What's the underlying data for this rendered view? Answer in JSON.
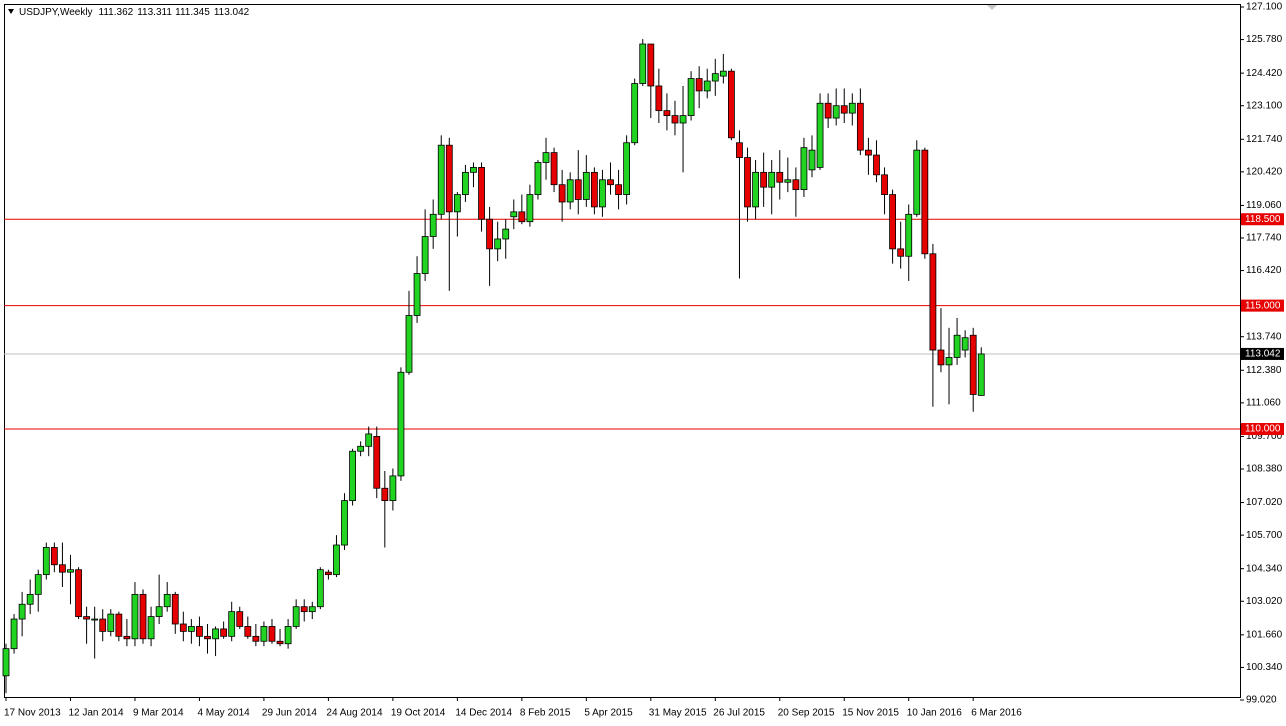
{
  "chart_data": {
    "type": "candlestick",
    "title": "USDJPY,Weekly",
    "up_color": "#22d422",
    "down_color": "#e60000",
    "categories": [
      "17 Nov 2013",
      null,
      null,
      null,
      null,
      null,
      null,
      null,
      "12 Jan 2014",
      null,
      null,
      null,
      null,
      null,
      null,
      null,
      "9 Mar 2014",
      null,
      null,
      null,
      null,
      null,
      null,
      null,
      "4 May 2014",
      null,
      null,
      null,
      null,
      null,
      null,
      null,
      "29 Jun 2014",
      null,
      null,
      null,
      null,
      null,
      null,
      null,
      "24 Aug 2014",
      null,
      null,
      null,
      null,
      null,
      null,
      null,
      "19 Oct 2014",
      null,
      null,
      null,
      null,
      null,
      null,
      null,
      "14 Dec 2014",
      null,
      null,
      null,
      null,
      null,
      null,
      null,
      "8 Feb 2015",
      null,
      null,
      null,
      null,
      null,
      null,
      null,
      "5 Apr 2015",
      null,
      null,
      null,
      null,
      null,
      null,
      null,
      "31 May 2015",
      null,
      null,
      null,
      null,
      null,
      null,
      null,
      "26 Jul 2015",
      null,
      null,
      null,
      null,
      null,
      null,
      null,
      "20 Sep 2015",
      null,
      null,
      null,
      null,
      null,
      null,
      null,
      "15 Nov 2015",
      null,
      null,
      null,
      null,
      null,
      null,
      null,
      "10 Jan 2016",
      null,
      null,
      null,
      null,
      null,
      null,
      null,
      "6 Mar 2016",
      null
    ],
    "open": [
      100.0,
      101.1,
      102.3,
      102.9,
      103.3,
      104.1,
      105.2,
      104.5,
      104.2,
      104.3,
      102.4,
      102.3,
      102.3,
      101.8,
      102.5,
      101.6,
      101.5,
      103.3,
      101.5,
      102.4,
      102.8,
      103.3,
      102.1,
      101.8,
      102.0,
      101.6,
      101.5,
      101.9,
      101.6,
      102.6,
      102.0,
      101.6,
      101.4,
      102.0,
      101.4,
      101.3,
      102.0,
      102.8,
      102.6,
      102.8,
      104.2,
      104.1,
      105.3,
      107.1,
      109.1,
      109.3,
      109.7,
      107.6,
      107.1,
      108.1,
      112.3,
      114.6,
      116.3,
      117.8,
      118.7,
      121.5,
      118.8,
      119.5,
      120.4,
      120.6,
      118.5,
      117.3,
      117.7,
      118.6,
      118.8,
      118.4,
      119.5,
      120.8,
      121.2,
      119.9,
      119.2,
      120.1,
      119.3,
      120.4,
      119.0,
      120.1,
      119.9,
      119.5,
      121.6,
      124.0,
      125.6,
      123.9,
      122.9,
      122.7,
      122.4,
      122.7,
      124.2,
      123.7,
      124.1,
      124.3,
      124.5,
      121.6,
      121.0,
      119.0,
      120.4,
      119.8,
      120.4,
      120.0,
      120.1,
      119.7,
      120.5,
      120.6,
      123.2,
      122.6,
      123.1,
      122.8,
      123.2,
      121.3,
      121.1,
      120.3,
      119.5,
      117.3,
      117.0,
      118.7,
      121.3,
      117.1,
      113.2,
      112.6,
      112.9,
      113.2,
      113.8,
      111.362
    ],
    "high": [
      101.3,
      102.5,
      103.4,
      103.9,
      104.3,
      105.4,
      105.4,
      105.4,
      104.9,
      104.4,
      102.8,
      102.8,
      102.7,
      102.7,
      102.6,
      102.3,
      103.8,
      103.5,
      102.8,
      104.1,
      103.8,
      103.4,
      102.6,
      102.3,
      102.4,
      102.1,
      102.0,
      102.2,
      103.0,
      102.8,
      102.4,
      102.1,
      102.2,
      102.3,
      101.9,
      102.3,
      103.1,
      103.1,
      103.0,
      104.4,
      104.3,
      105.7,
      107.4,
      109.2,
      109.5,
      110.1,
      110.1,
      108.3,
      108.4,
      112.5,
      115.6,
      117.0,
      118.9,
      119.3,
      121.9,
      121.8,
      119.6,
      120.7,
      120.8,
      120.8,
      119.0,
      118.4,
      118.5,
      119.3,
      119.5,
      119.9,
      120.9,
      121.8,
      121.4,
      120.5,
      120.4,
      121.3,
      121.1,
      120.6,
      120.5,
      120.8,
      120.5,
      121.9,
      124.2,
      125.8,
      125.6,
      124.6,
      123.6,
      123.3,
      123.9,
      124.5,
      124.7,
      124.6,
      125.0,
      125.2,
      124.6,
      122.1,
      121.4,
      120.9,
      121.2,
      120.9,
      121.3,
      121.0,
      120.6,
      121.8,
      121.9,
      123.6,
      123.6,
      123.8,
      123.8,
      123.6,
      123.8,
      121.8,
      121.7,
      120.6,
      119.7,
      118.4,
      119.1,
      121.7,
      121.4,
      117.5,
      114.9,
      114.1,
      114.5,
      114.0,
      114.1,
      113.311
    ],
    "low": [
      99.3,
      100.9,
      101.6,
      102.5,
      102.6,
      103.9,
      104.2,
      103.6,
      102.9,
      102.3,
      101.3,
      100.7,
      101.4,
      101.6,
      101.4,
      101.2,
      101.2,
      101.3,
      101.2,
      102.1,
      102.6,
      101.7,
      101.4,
      101.3,
      101.2,
      100.9,
      100.8,
      101.5,
      101.4,
      101.9,
      101.5,
      101.2,
      101.2,
      101.3,
      101.2,
      101.1,
      101.9,
      102.2,
      102.3,
      102.7,
      103.9,
      104.0,
      105.1,
      106.9,
      108.9,
      108.9,
      107.2,
      105.2,
      106.7,
      107.9,
      112.2,
      114.3,
      116.0,
      117.3,
      118.5,
      115.6,
      117.8,
      119.2,
      119.8,
      118.0,
      115.8,
      116.8,
      116.9,
      118.1,
      118.3,
      118.2,
      119.3,
      120.1,
      119.6,
      118.4,
      118.9,
      118.7,
      119.0,
      118.7,
      118.6,
      119.5,
      118.9,
      119.1,
      121.5,
      123.9,
      122.6,
      122.4,
      122.1,
      121.9,
      120.4,
      122.5,
      123.0,
      123.4,
      123.5,
      124.0,
      121.7,
      116.1,
      118.4,
      118.5,
      119.0,
      118.7,
      119.3,
      119.6,
      118.6,
      119.4,
      120.2,
      120.5,
      122.2,
      122.3,
      122.4,
      122.3,
      121.1,
      120.3,
      120.0,
      118.7,
      116.7,
      116.5,
      116.0,
      118.6,
      116.9,
      110.9,
      112.3,
      111.0,
      112.6,
      112.9,
      110.7,
      111.345
    ],
    "close": [
      101.1,
      102.3,
      102.9,
      103.3,
      104.1,
      105.2,
      104.5,
      104.2,
      104.3,
      102.4,
      102.3,
      102.3,
      101.8,
      102.5,
      101.6,
      101.5,
      103.3,
      101.5,
      102.4,
      102.8,
      103.3,
      102.1,
      101.8,
      102.0,
      101.6,
      101.5,
      101.9,
      101.6,
      102.6,
      102.0,
      101.6,
      101.4,
      102.0,
      101.4,
      101.3,
      102.0,
      102.8,
      102.6,
      102.8,
      104.3,
      104.1,
      105.3,
      107.1,
      109.1,
      109.3,
      109.8,
      107.6,
      107.1,
      108.1,
      112.3,
      114.6,
      116.3,
      117.8,
      118.7,
      121.5,
      118.8,
      119.5,
      120.4,
      120.6,
      118.5,
      117.3,
      117.7,
      118.1,
      118.8,
      118.4,
      119.5,
      120.8,
      121.2,
      119.9,
      119.2,
      120.1,
      119.3,
      120.4,
      119.0,
      120.1,
      119.9,
      119.5,
      121.6,
      124.0,
      125.6,
      123.9,
      122.9,
      122.7,
      122.4,
      122.7,
      124.2,
      123.7,
      124.1,
      124.4,
      124.5,
      121.8,
      121.0,
      119.0,
      120.4,
      119.8,
      120.4,
      120.0,
      120.1,
      119.7,
      121.4,
      121.3,
      123.2,
      122.6,
      123.1,
      122.8,
      123.2,
      121.3,
      121.1,
      120.3,
      119.5,
      117.3,
      117.0,
      118.7,
      121.3,
      117.1,
      113.2,
      112.6,
      112.9,
      113.8,
      113.7,
      111.4,
      113.042
    ],
    "ylim": [
      99.02,
      127.1
    ],
    "yticks": [
      {
        "value": 127.1,
        "label": "127.100"
      },
      {
        "value": 125.78,
        "label": "125.780"
      },
      {
        "value": 124.42,
        "label": "124.420"
      },
      {
        "value": 123.1,
        "label": "123.100"
      },
      {
        "value": 121.74,
        "label": "121.740"
      },
      {
        "value": 120.42,
        "label": "120.420"
      },
      {
        "value": 119.06,
        "label": "119.060"
      },
      {
        "value": 117.74,
        "label": "117.740"
      },
      {
        "value": 116.42,
        "label": "116.420"
      },
      {
        "value": 113.74,
        "label": "113.740"
      },
      {
        "value": 112.38,
        "label": "112.380"
      },
      {
        "value": 111.06,
        "label": "111.060"
      },
      {
        "value": 109.7,
        "label": "109.700"
      },
      {
        "value": 108.38,
        "label": "108.380"
      },
      {
        "value": 107.02,
        "label": "107.020"
      },
      {
        "value": 105.7,
        "label": "105.700"
      },
      {
        "value": 104.34,
        "label": "104.340"
      },
      {
        "value": 103.02,
        "label": "103.020"
      },
      {
        "value": 101.66,
        "label": "101.660"
      },
      {
        "value": 100.34,
        "label": "100.340"
      },
      {
        "value": 99.02,
        "label": "99.020"
      }
    ],
    "hline_color": "#e60000",
    "hlines": [
      {
        "value": 118.5,
        "label": "118.500"
      },
      {
        "value": 115.0,
        "label": "115.000"
      },
      {
        "value": 110.0,
        "label": "110.000"
      }
    ],
    "last_price_color": "#c0c0c0"
  }
}
